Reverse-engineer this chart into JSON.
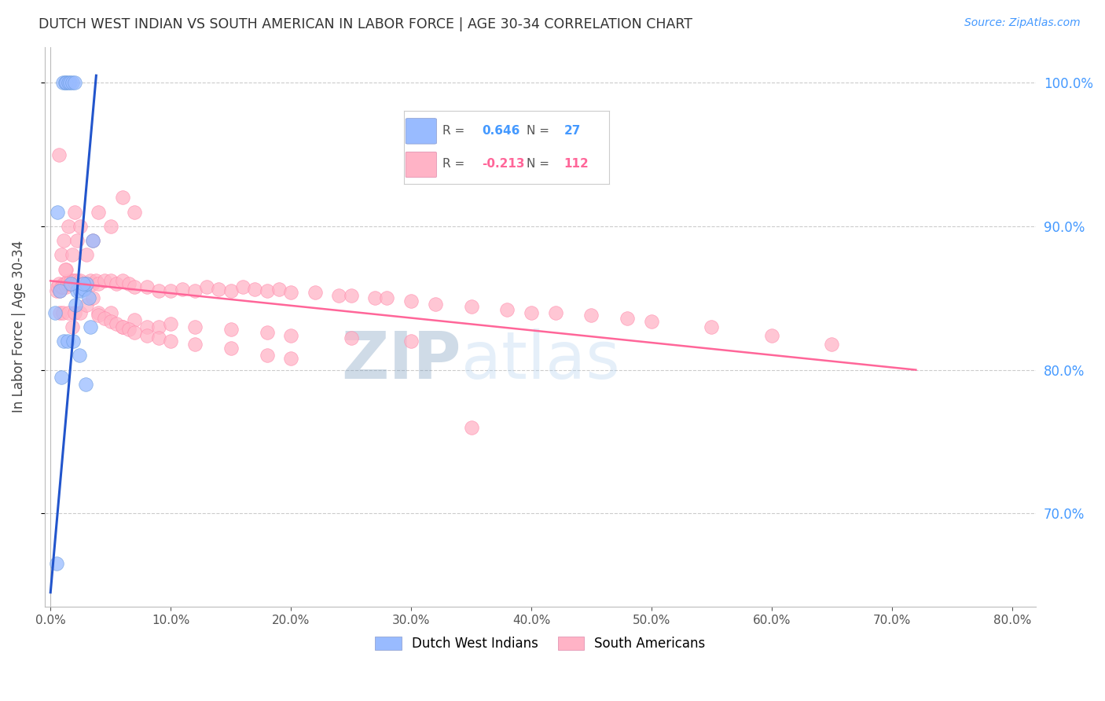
{
  "title": "DUTCH WEST INDIAN VS SOUTH AMERICAN IN LABOR FORCE | AGE 30-34 CORRELATION CHART",
  "source": "Source: ZipAtlas.com",
  "xlabel_vals": [
    0.0,
    0.1,
    0.2,
    0.3,
    0.4,
    0.5,
    0.6,
    0.7,
    0.8
  ],
  "ylabel_vals": [
    0.7,
    0.8,
    0.9,
    1.0
  ],
  "ylabel_label": "In Labor Force | Age 30-34",
  "xlim": [
    -0.005,
    0.82
  ],
  "ylim": [
    0.635,
    1.025
  ],
  "blue_R": 0.646,
  "blue_N": 27,
  "pink_R": -0.213,
  "pink_N": 112,
  "legend_label_blue": "Dutch West Indians",
  "legend_label_pink": "South Americans",
  "bg_color": "#ffffff",
  "grid_color": "#cccccc",
  "title_color": "#333333",
  "right_axis_color": "#4499ff",
  "watermark_zip": "ZIP",
  "watermark_atlas": "atlas",
  "blue_color": "#99BBFF",
  "pink_color": "#FFB3C6",
  "blue_line_color": "#2255CC",
  "pink_line_color": "#FF6699",
  "blue_x": [
    0.005,
    0.008,
    0.01,
    0.012,
    0.013,
    0.015,
    0.016,
    0.018,
    0.02,
    0.022,
    0.025,
    0.028,
    0.03,
    0.032,
    0.035,
    0.004,
    0.006,
    0.009,
    0.011,
    0.014,
    0.017,
    0.019,
    0.021,
    0.024,
    0.027,
    0.029,
    0.033
  ],
  "blue_y": [
    0.665,
    0.855,
    1.0,
    1.0,
    1.0,
    1.0,
    1.0,
    1.0,
    1.0,
    0.855,
    0.855,
    0.856,
    0.86,
    0.85,
    0.89,
    0.84,
    0.91,
    0.795,
    0.82,
    0.82,
    0.86,
    0.82,
    0.845,
    0.81,
    0.86,
    0.79,
    0.83
  ],
  "pink_x": [
    0.005,
    0.006,
    0.007,
    0.008,
    0.009,
    0.01,
    0.011,
    0.012,
    0.013,
    0.014,
    0.015,
    0.016,
    0.017,
    0.018,
    0.019,
    0.02,
    0.021,
    0.022,
    0.023,
    0.025,
    0.027,
    0.03,
    0.033,
    0.035,
    0.038,
    0.04,
    0.045,
    0.05,
    0.055,
    0.06,
    0.065,
    0.07,
    0.08,
    0.09,
    0.1,
    0.11,
    0.12,
    0.13,
    0.14,
    0.15,
    0.16,
    0.17,
    0.18,
    0.19,
    0.2,
    0.22,
    0.24,
    0.25,
    0.27,
    0.28,
    0.3,
    0.32,
    0.35,
    0.38,
    0.4,
    0.42,
    0.45,
    0.48,
    0.5,
    0.55,
    0.6,
    0.65,
    0.007,
    0.009,
    0.011,
    0.013,
    0.015,
    0.018,
    0.02,
    0.022,
    0.025,
    0.03,
    0.035,
    0.04,
    0.05,
    0.06,
    0.07,
    0.008,
    0.01,
    0.012,
    0.015,
    0.018,
    0.02,
    0.025,
    0.03,
    0.035,
    0.04,
    0.05,
    0.06,
    0.07,
    0.08,
    0.09,
    0.1,
    0.12,
    0.15,
    0.18,
    0.2,
    0.25,
    0.3,
    0.35,
    0.04,
    0.045,
    0.05,
    0.055,
    0.06,
    0.065,
    0.07,
    0.08,
    0.09,
    0.1,
    0.12,
    0.15,
    0.18,
    0.2
  ],
  "pink_y": [
    0.855,
    0.858,
    0.86,
    0.855,
    0.858,
    0.858,
    0.86,
    0.86,
    0.858,
    0.86,
    0.862,
    0.86,
    0.862,
    0.86,
    0.862,
    0.862,
    0.86,
    0.862,
    0.86,
    0.862,
    0.86,
    0.86,
    0.862,
    0.86,
    0.862,
    0.86,
    0.862,
    0.862,
    0.86,
    0.862,
    0.86,
    0.858,
    0.858,
    0.855,
    0.855,
    0.856,
    0.855,
    0.858,
    0.856,
    0.855,
    0.858,
    0.856,
    0.855,
    0.856,
    0.854,
    0.854,
    0.852,
    0.852,
    0.85,
    0.85,
    0.848,
    0.846,
    0.844,
    0.842,
    0.84,
    0.84,
    0.838,
    0.836,
    0.834,
    0.83,
    0.824,
    0.818,
    0.95,
    0.88,
    0.89,
    0.87,
    0.9,
    0.88,
    0.91,
    0.89,
    0.9,
    0.88,
    0.89,
    0.91,
    0.9,
    0.92,
    0.91,
    0.84,
    0.84,
    0.87,
    0.84,
    0.83,
    0.84,
    0.84,
    0.845,
    0.85,
    0.84,
    0.84,
    0.83,
    0.835,
    0.83,
    0.83,
    0.832,
    0.83,
    0.828,
    0.826,
    0.824,
    0.822,
    0.82,
    0.76,
    0.838,
    0.836,
    0.834,
    0.832,
    0.83,
    0.828,
    0.826,
    0.824,
    0.822,
    0.82,
    0.818,
    0.815,
    0.81,
    0.808
  ],
  "blue_trend_x": [
    0.0,
    0.038
  ],
  "blue_trend_y": [
    0.645,
    1.005
  ],
  "pink_trend_x": [
    0.0,
    0.72
  ],
  "pink_trend_y": [
    0.862,
    0.8
  ]
}
